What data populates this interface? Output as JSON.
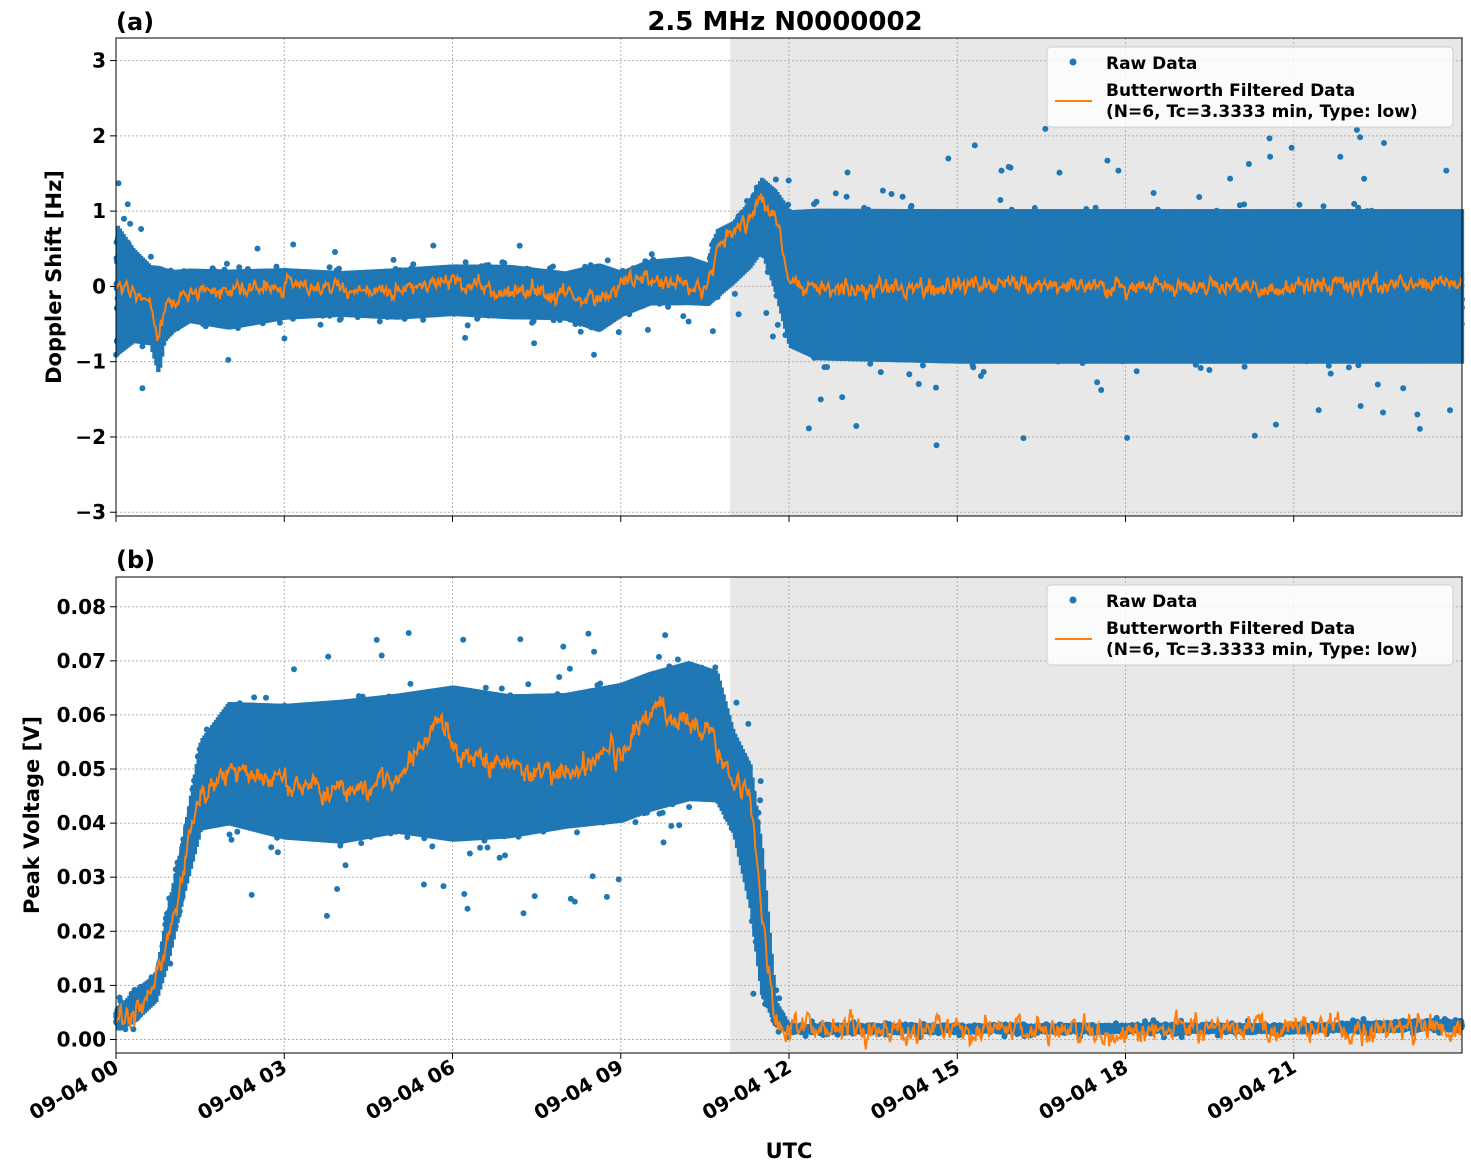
{
  "figure": {
    "title": "2.5 MHz N0000002",
    "xlabel": "UTC",
    "shaded_region": {
      "start_hour": 10.95,
      "end_hour": 24
    }
  },
  "colors": {
    "raw": "#1f77b4",
    "filtered": "#ff7f0e",
    "shade": "#e8e8e8",
    "grid": "#b0b0b0"
  },
  "chart_data": [
    {
      "type": "scatter",
      "panel_label": "(a)",
      "title": "2.5 MHz N0000002",
      "xlabel": "",
      "ylabel": "Doppler Shift [Hz]",
      "xlim": [
        0,
        24
      ],
      "ylim": [
        -3.05,
        3.3
      ],
      "x_ticks": [
        0,
        3,
        6,
        9,
        12,
        15,
        18,
        21
      ],
      "y_ticks": [
        -3,
        -2,
        -1,
        0,
        1,
        2,
        3
      ],
      "y_tick_labels": [
        "−3",
        "−2",
        "−1",
        "0",
        "1",
        "2",
        "3"
      ],
      "grid": true,
      "legend_position": "top-right",
      "legend": [
        "Raw Data",
        "Butterworth Filtered Data",
        "(N=6, Tc=3.3333 min, Type: low)"
      ],
      "series": [
        {
          "name": "Raw Data",
          "kind": "scatter-band",
          "x": [
            0,
            0.3,
            0.6,
            0.75,
            0.85,
            1.0,
            1.3,
            2.0,
            3.0,
            4.0,
            5.0,
            6.0,
            7.0,
            8.0,
            8.6,
            9.0,
            9.5,
            10.2,
            10.55,
            10.7,
            11.0,
            11.3,
            11.5,
            11.75,
            12.0,
            12.5,
            15.0,
            18.0,
            21.0,
            24.0
          ],
          "upper": [
            1.1,
            0.7,
            0.45,
            0.5,
            0.4,
            0.35,
            0.35,
            0.35,
            0.35,
            0.3,
            0.35,
            0.4,
            0.4,
            0.3,
            0.45,
            0.3,
            0.45,
            0.5,
            0.4,
            0.9,
            1.0,
            1.3,
            1.6,
            1.5,
            1.3,
            1.35,
            1.35,
            1.35,
            1.35,
            1.35
          ],
          "lower": [
            -1.2,
            -0.95,
            -0.95,
            -1.4,
            -0.9,
            -0.75,
            -0.6,
            -0.7,
            -0.55,
            -0.5,
            -0.55,
            -0.5,
            -0.55,
            -0.55,
            -0.75,
            -0.5,
            -0.35,
            -0.35,
            -0.35,
            -0.3,
            -0.1,
            0.1,
            0.3,
            -0.3,
            -1.1,
            -1.3,
            -1.35,
            -1.35,
            -1.35,
            -1.35
          ]
        },
        {
          "name": "Butterworth Filtered Data",
          "kind": "line",
          "x": [
            0,
            0.3,
            0.6,
            0.75,
            0.85,
            1.0,
            1.3,
            2.0,
            3.0,
            4.0,
            5.0,
            6.0,
            7.0,
            8.0,
            8.6,
            9.0,
            9.5,
            10.2,
            10.55,
            10.7,
            11.0,
            11.3,
            11.5,
            11.75,
            12.0,
            12.5,
            15.0,
            18.0,
            21.0,
            24.0
          ],
          "y": [
            0.0,
            -0.1,
            -0.2,
            -0.7,
            -0.3,
            -0.2,
            -0.1,
            -0.05,
            0.02,
            -0.05,
            -0.05,
            0.1,
            -0.05,
            -0.1,
            -0.15,
            0.05,
            0.1,
            0.0,
            -0.05,
            0.5,
            0.7,
            0.9,
            1.2,
            0.9,
            0.1,
            0.0,
            0.0,
            0.0,
            0.0,
            0.05
          ],
          "noise_amplitude": 0.2
        }
      ]
    },
    {
      "type": "scatter",
      "panel_label": "(b)",
      "title": "",
      "xlabel": "UTC",
      "ylabel": "Peak Voltage [V]",
      "xlim": [
        0,
        24
      ],
      "ylim": [
        -0.0025,
        0.0855
      ],
      "x_ticks": [
        0,
        3,
        6,
        9,
        12,
        15,
        18,
        21
      ],
      "x_tick_labels": [
        "09-04 00",
        "09-04 03",
        "09-04 06",
        "09-04 09",
        "09-04 12",
        "09-04 15",
        "09-04 18",
        "09-04 21"
      ],
      "y_ticks": [
        0.0,
        0.01,
        0.02,
        0.03,
        0.04,
        0.05,
        0.06,
        0.07,
        0.08
      ],
      "y_tick_labels": [
        "0.00",
        "0.01",
        "0.02",
        "0.03",
        "0.04",
        "0.05",
        "0.06",
        "0.07",
        "0.08"
      ],
      "grid": true,
      "legend_position": "top-right",
      "legend": [
        "Raw Data",
        "Butterworth Filtered Data",
        "(N=6, Tc=3.3333 min, Type: low)"
      ],
      "series": [
        {
          "name": "Raw Data",
          "kind": "scatter-band",
          "x": [
            0,
            0.3,
            0.7,
            0.9,
            1.2,
            1.5,
            2.0,
            3.0,
            4.0,
            5.0,
            6.0,
            7.0,
            8.0,
            9.0,
            9.5,
            10.2,
            10.7,
            11.0,
            11.3,
            11.5,
            11.75,
            12.0,
            15.0,
            18.0,
            21.0,
            24.0
          ],
          "upper": [
            0.006,
            0.01,
            0.013,
            0.025,
            0.04,
            0.058,
            0.066,
            0.066,
            0.067,
            0.068,
            0.07,
            0.068,
            0.068,
            0.07,
            0.072,
            0.074,
            0.072,
            0.06,
            0.055,
            0.04,
            0.008,
            0.003,
            0.003,
            0.003,
            0.003,
            0.004
          ],
          "lower": [
            0.001,
            0.002,
            0.006,
            0.012,
            0.025,
            0.036,
            0.036,
            0.033,
            0.032,
            0.034,
            0.032,
            0.033,
            0.035,
            0.036,
            0.038,
            0.04,
            0.04,
            0.035,
            0.02,
            0.004,
            0.0015,
            0.001,
            0.001,
            0.001,
            0.001,
            0.0015
          ]
        },
        {
          "name": "Butterworth Filtered Data",
          "kind": "line",
          "x": [
            0,
            0.3,
            0.6,
            0.7,
            0.9,
            1.2,
            1.5,
            2.0,
            3.0,
            4.0,
            5.0,
            5.8,
            6.0,
            7.0,
            8.0,
            9.0,
            9.7,
            10.2,
            10.7,
            11.0,
            11.3,
            11.5,
            11.75,
            12.0,
            15.0,
            18.0,
            21.0,
            24.0
          ],
          "y": [
            0.003,
            0.005,
            0.008,
            0.012,
            0.017,
            0.03,
            0.045,
            0.05,
            0.048,
            0.046,
            0.048,
            0.06,
            0.053,
            0.05,
            0.05,
            0.053,
            0.062,
            0.058,
            0.055,
            0.048,
            0.046,
            0.025,
            0.004,
            0.002,
            0.002,
            0.002,
            0.002,
            0.002
          ],
          "noise_amplitude": 0.004
        }
      ]
    }
  ]
}
